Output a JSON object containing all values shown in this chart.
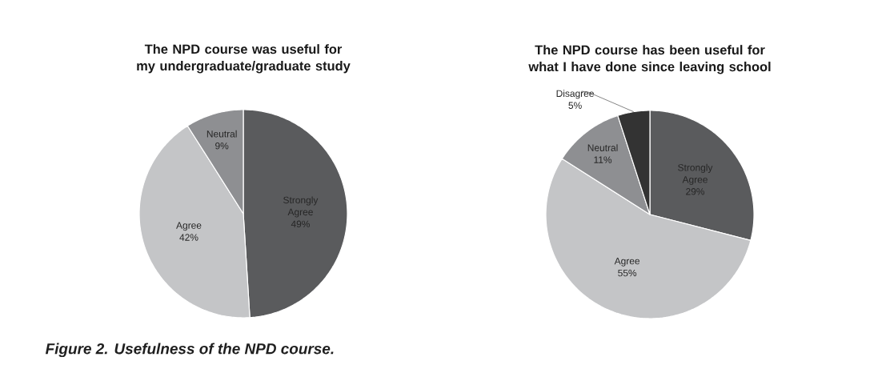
{
  "chart_data": [
    {
      "type": "pie",
      "title": "The NPD course was useful for my undergraduate/graduate study",
      "categories": [
        "Strongly Agree",
        "Agree",
        "Neutral"
      ],
      "values": [
        49,
        42,
        9
      ],
      "value_labels": [
        "49%",
        "42%",
        "9%"
      ],
      "colors": [
        "#5a5b5d",
        "#c4c5c7",
        "#8e8f92"
      ],
      "annotations": [
        "Figure 2. Usefulness of the NPD course."
      ]
    },
    {
      "type": "pie",
      "title": "The NPD course has been useful for what I have done since leaving school",
      "categories": [
        "Strongly Agree",
        "Agree",
        "Neutral",
        "Disagree"
      ],
      "values": [
        29,
        55,
        11,
        5
      ],
      "value_labels": [
        "29%",
        "55%",
        "11%",
        "5%"
      ],
      "colors": [
        "#5a5b5d",
        "#c4c5c7",
        "#8e8f92",
        "#333333"
      ]
    }
  ]
}
